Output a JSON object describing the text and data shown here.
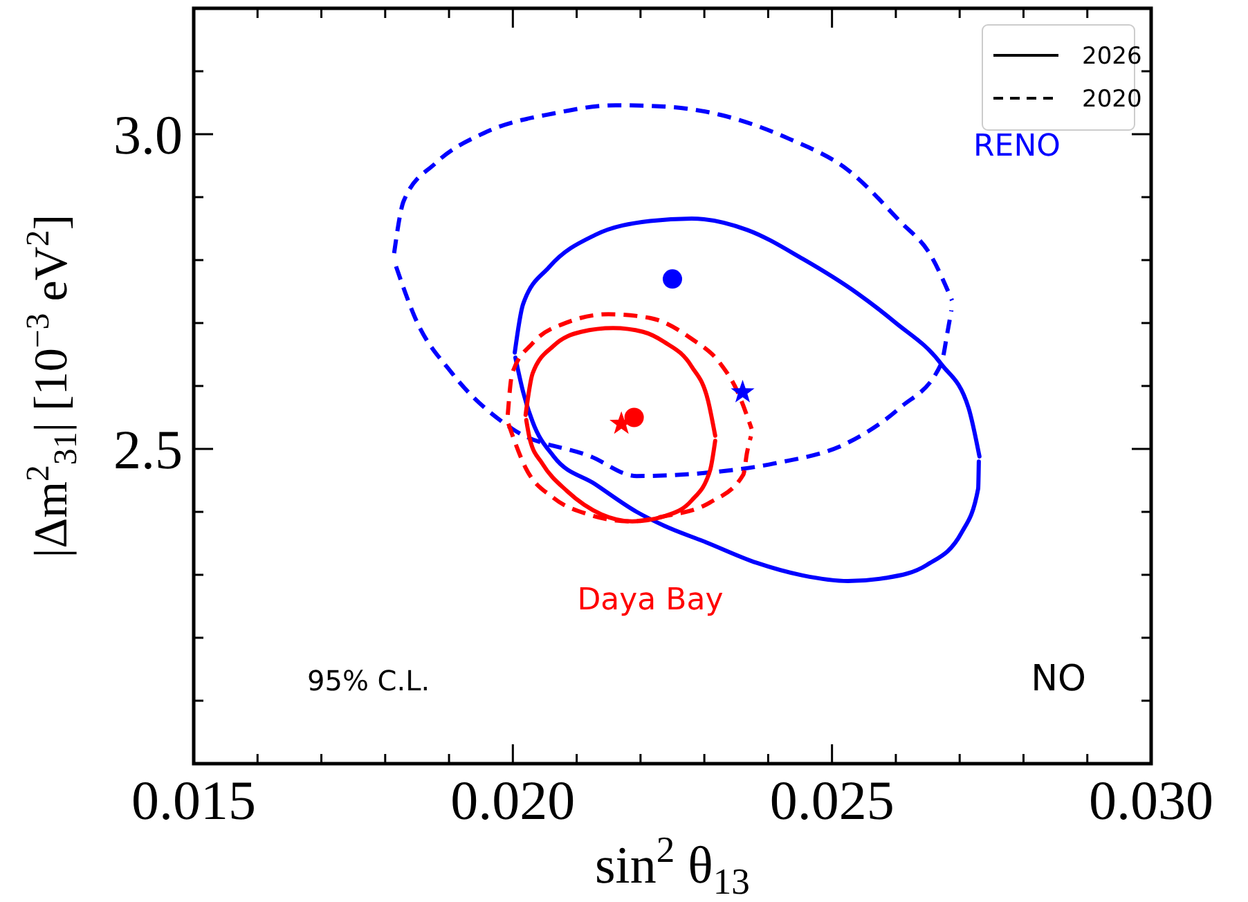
{
  "chart_data": {
    "type": "line",
    "xlabel": "sin$^{2}$ θ$_{13}$",
    "ylabel": "|Δm$^{2}$$_{31}$| [10$^{−3}$ eV$^{2}$]",
    "xlim": [
      0.015,
      0.03
    ],
    "ylim": [
      2.0,
      3.2
    ],
    "xticks": [
      {
        "value": 0.015,
        "label": "0.015"
      },
      {
        "value": 0.016,
        "label": null
      },
      {
        "value": 0.017,
        "label": null
      },
      {
        "value": 0.018,
        "label": null
      },
      {
        "value": 0.019,
        "label": null
      },
      {
        "value": 0.02,
        "label": "0.020"
      },
      {
        "value": 0.021,
        "label": null
      },
      {
        "value": 0.022,
        "label": null
      },
      {
        "value": 0.023,
        "label": null
      },
      {
        "value": 0.024,
        "label": null
      },
      {
        "value": 0.025,
        "label": "0.025"
      },
      {
        "value": 0.026,
        "label": null
      },
      {
        "value": 0.027,
        "label": null
      },
      {
        "value": 0.028,
        "label": null
      },
      {
        "value": 0.029,
        "label": null
      },
      {
        "value": 0.03,
        "label": "0.030"
      }
    ],
    "yticks": [
      {
        "value": 2.0,
        "label": null
      },
      {
        "value": 2.1,
        "label": null
      },
      {
        "value": 2.2,
        "label": null
      },
      {
        "value": 2.3,
        "label": null
      },
      {
        "value": 2.4,
        "label": null
      },
      {
        "value": 2.5,
        "label": "2.5"
      },
      {
        "value": 2.6,
        "label": null
      },
      {
        "value": 2.7,
        "label": null
      },
      {
        "value": 2.8,
        "label": null
      },
      {
        "value": 2.9,
        "label": null
      },
      {
        "value": 3.0,
        "label": "3.0"
      },
      {
        "value": 3.1,
        "label": null
      },
      {
        "value": 3.2,
        "label": null
      }
    ],
    "legend": "top right",
    "series": [
      {
        "color": "#0000ff",
        "line_style": "dashed",
        "marker": "none",
        "x": [
          0.01814,
          0.01829,
          0.01879,
          0.01955,
          0.02064,
          0.02161,
          0.02237,
          0.02324,
          0.02432,
          0.02525,
          0.02606,
          0.02655,
          0.02688
        ],
        "values": [
          2.811,
          2.894,
          2.954,
          3.002,
          3.033,
          3.046,
          3.044,
          3.031,
          2.993,
          2.943,
          2.862,
          2.807,
          2.736
        ]
      },
      {
        "color": "#0000ff",
        "line_style": "dashed",
        "marker": "none",
        "x": [
          0.01817,
          0.01847,
          0.01905,
          0.01999,
          0.02122,
          0.02194,
          0.02302,
          0.0241,
          0.02525,
          0.02606,
          0.02671,
          0.02681,
          0.02687
        ],
        "values": [
          2.79,
          2.708,
          2.62,
          2.532,
          2.488,
          2.457,
          2.462,
          2.477,
          2.51,
          2.565,
          2.635,
          2.686,
          2.72
        ]
      },
      {
        "color": "#0000ff",
        "line_style": "solid",
        "marker": "none",
        "x": [
          0.02003,
          0.02016,
          0.02057,
          0.02129,
          0.02215,
          0.0228,
          0.02367,
          0.02454,
          0.0254,
          0.02599,
          0.02671,
          0.02714,
          0.02731
        ],
        "values": [
          2.653,
          2.73,
          2.789,
          2.84,
          2.862,
          2.866,
          2.848,
          2.802,
          2.747,
          2.701,
          2.635,
          2.565,
          2.488
        ]
      },
      {
        "color": "#0000ff",
        "line_style": "solid",
        "marker": "none",
        "x": [
          0.02004,
          0.02016,
          0.02031,
          0.02064,
          0.02129,
          0.02194,
          0.02237,
          0.02302,
          0.02382,
          0.02454,
          0.02525,
          0.02584,
          0.02649,
          0.02703,
          0.02729,
          0.0273
        ],
        "values": [
          2.645,
          2.591,
          2.543,
          2.488,
          2.444,
          2.4,
          2.378,
          2.352,
          2.319,
          2.299,
          2.29,
          2.295,
          2.316,
          2.367,
          2.437,
          2.48
        ]
      },
      {
        "color": "#ff0000",
        "line_style": "dashed",
        "marker": "none",
        "x": [
          0.01992,
          0.01999,
          0.02031,
          0.02085,
          0.0215,
          0.02215,
          0.0228,
          0.02324,
          0.02352,
          0.02374
        ],
        "values": [
          2.554,
          2.62,
          2.668,
          2.701,
          2.714,
          2.708,
          2.675,
          2.637,
          2.591,
          2.532
        ]
      },
      {
        "color": "#ff0000",
        "line_style": "dashed",
        "marker": "none",
        "x": [
          0.01993,
          0.0202,
          0.02064,
          0.02118,
          0.02183,
          0.02237,
          0.02309,
          0.02361,
          0.02367,
          0.02373
        ],
        "values": [
          2.54,
          2.47,
          2.422,
          2.396,
          2.385,
          2.393,
          2.415,
          2.459,
          2.495,
          2.52
        ]
      },
      {
        "color": "#ff0000",
        "line_style": "solid",
        "marker": "none",
        "x": [
          0.0202,
          0.02031,
          0.02064,
          0.02107,
          0.02157,
          0.02204,
          0.02237,
          0.0228,
          0.02306,
          0.02317
        ],
        "values": [
          2.554,
          2.62,
          2.664,
          2.686,
          2.692,
          2.686,
          2.67,
          2.631,
          2.576,
          2.521
        ]
      },
      {
        "color": "#ff0000",
        "line_style": "solid",
        "marker": "none",
        "x": [
          0.02021,
          0.02027,
          0.02046,
          0.02085,
          0.02139,
          0.02187,
          0.02237,
          0.0228,
          0.02309,
          0.02317
        ],
        "values": [
          2.546,
          2.514,
          2.477,
          2.433,
          2.396,
          2.385,
          2.393,
          2.418,
          2.466,
          2.513
        ]
      },
      {
        "type": "scatter",
        "color": "#0000ff",
        "marker": "circle",
        "x": [
          0.0225
        ],
        "values": [
          2.77
        ]
      },
      {
        "type": "scatter",
        "color": "#0000ff",
        "marker": "star",
        "x": [
          0.0236
        ],
        "values": [
          2.59
        ]
      },
      {
        "type": "scatter",
        "color": "#ff0000",
        "marker": "star",
        "x": [
          0.0217
        ],
        "values": [
          2.54
        ]
      },
      {
        "type": "scatter",
        "color": "#ff0000",
        "marker": "circle",
        "x": [
          0.0219
        ],
        "values": [
          2.55
        ]
      },
      {
        "name": "2026",
        "color": "#000000",
        "line_style": "solid"
      },
      {
        "name": "2020",
        "color": "#000000",
        "line_style": "dashed"
      }
    ],
    "annotations": [
      "RENO",
      "Daya Bay",
      "95% C.L.",
      "NO"
    ]
  }
}
